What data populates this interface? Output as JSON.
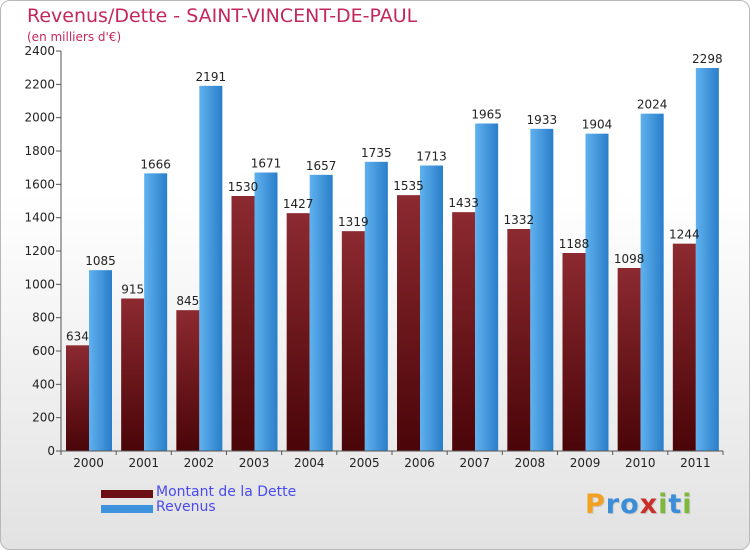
{
  "colors": {
    "title": "#c4275d",
    "dette": "#7a2328",
    "revenus": "#3d93dd",
    "axis": "#555555",
    "legend_text": "#4a4af0"
  },
  "legend": {
    "items": [
      {
        "label": "Montant de la Dette",
        "color": "#6b0f14"
      },
      {
        "label": "Revenus",
        "color": "#3d93dd"
      }
    ]
  },
  "logo": {
    "text": "Proxiti",
    "letter_colors": [
      "#f2a122",
      "#3a8dd6",
      "#3a8dd6",
      "#c9302c",
      "#7db83a",
      "#3a8dd6",
      "#7db83a"
    ]
  },
  "chart_data": {
    "type": "bar",
    "title": "Revenus/Dette - SAINT-VINCENT-DE-PAUL",
    "subtitle": "(en milliers d'€)",
    "xlabel": "",
    "ylabel": "",
    "categories": [
      "2000",
      "2001",
      "2002",
      "2003",
      "2004",
      "2005",
      "2006",
      "2007",
      "2008",
      "2009",
      "2010",
      "2011"
    ],
    "series": [
      {
        "name": "Montant de la Dette",
        "values": [
          634,
          915,
          845,
          1530,
          1427,
          1319,
          1535,
          1433,
          1332,
          1188,
          1098,
          1244
        ]
      },
      {
        "name": "Revenus",
        "values": [
          1085,
          1666,
          2191,
          1671,
          1657,
          1735,
          1713,
          1965,
          1933,
          1904,
          2024,
          2298
        ]
      }
    ],
    "ylim": [
      0,
      2400
    ],
    "yticks": [
      0,
      200,
      400,
      600,
      800,
      1000,
      1200,
      1400,
      1600,
      1800,
      2000,
      2200,
      2400
    ],
    "grid": false,
    "legend_position": "bottom-left"
  }
}
